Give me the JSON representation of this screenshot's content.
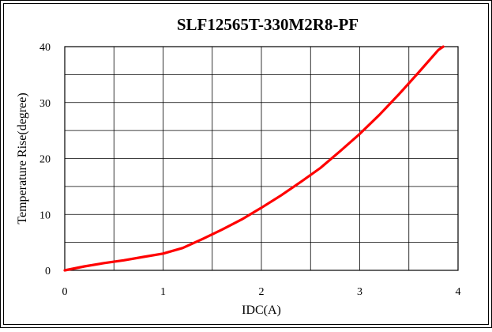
{
  "chart_data": {
    "type": "line",
    "title": "SLF12565T-330M2R8-PF",
    "xlabel": "IDC(A)",
    "ylabel": "Temperature Rise(degree)",
    "xlim": [
      0,
      4
    ],
    "ylim": [
      0,
      40
    ],
    "x_ticks": [
      "0",
      "1",
      "2",
      "3",
      "4"
    ],
    "y_ticks": [
      "0",
      "10",
      "20",
      "30",
      "40"
    ],
    "grid": true,
    "series": [
      {
        "color": "#ff0000",
        "x": [
          0,
          0.2,
          0.4,
          0.6,
          0.8,
          1.0,
          1.2,
          1.4,
          1.6,
          1.8,
          2.0,
          2.2,
          2.4,
          2.6,
          2.8,
          3.0,
          3.2,
          3.4,
          3.6,
          3.8,
          3.85
        ],
        "y": [
          0,
          0.7,
          1.3,
          1.8,
          2.4,
          3.0,
          4.0,
          5.6,
          7.3,
          9.1,
          11.2,
          13.4,
          15.8,
          18.3,
          21.3,
          24.4,
          27.8,
          31.5,
          35.4,
          39.4,
          40.0
        ]
      }
    ]
  }
}
